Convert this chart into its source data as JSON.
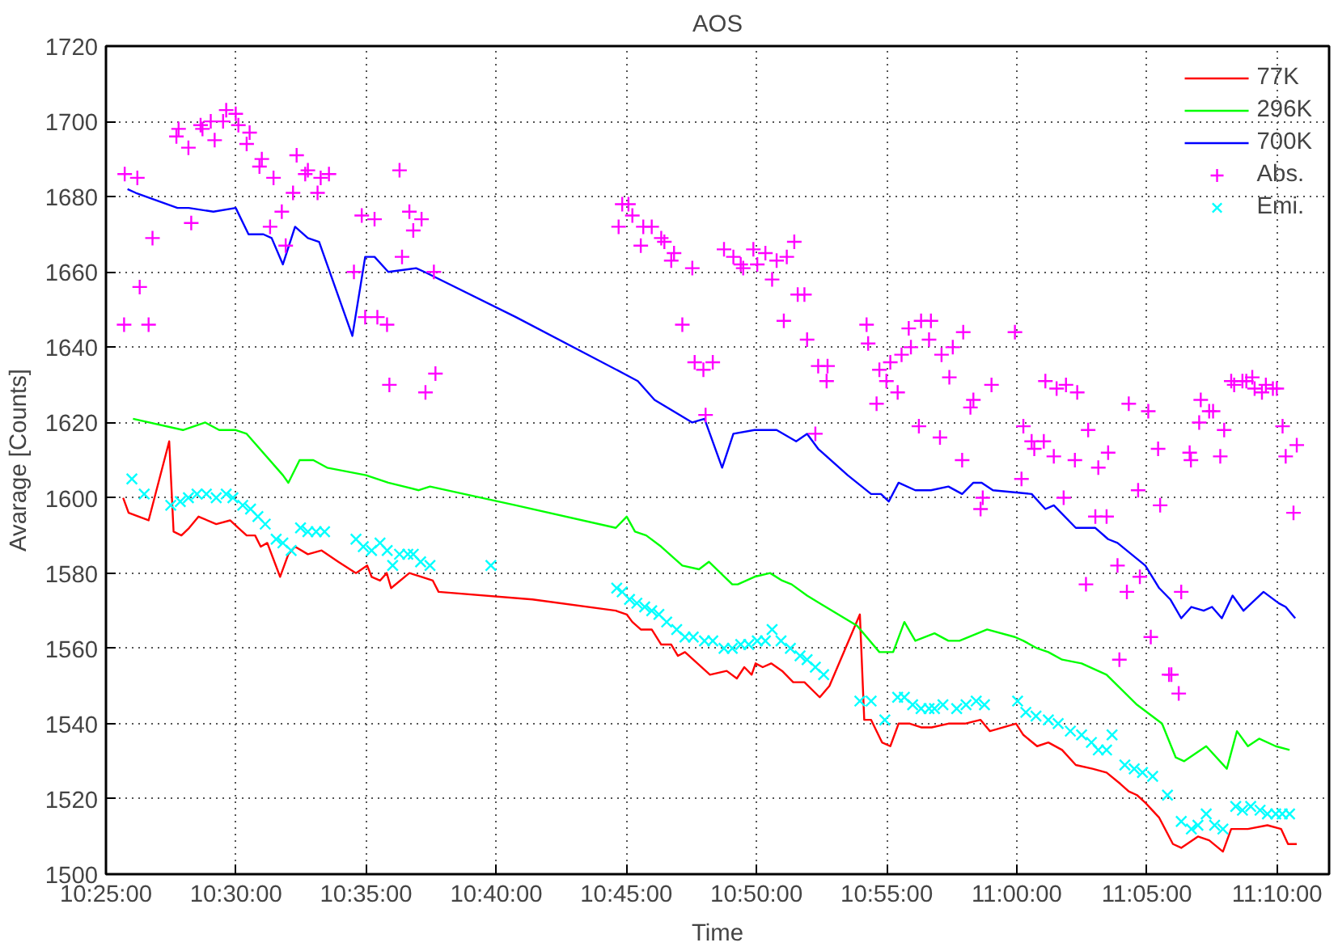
{
  "chart_data": {
    "type": "line",
    "title": "AOS",
    "xlabel": "Time",
    "ylabel": "Avarage [Counts]",
    "xlim": [
      10.4167,
      11.2
    ],
    "ylim": [
      1500,
      1720
    ],
    "xticks": [
      {
        "value": 10.4167,
        "label": "10:25:00"
      },
      {
        "value": 10.5,
        "label": "10:30:00"
      },
      {
        "value": 10.5833,
        "label": "10:35:00"
      },
      {
        "value": 10.6667,
        "label": "10:40:00"
      },
      {
        "value": 10.75,
        "label": "10:45:00"
      },
      {
        "value": 10.8333,
        "label": "10:50:00"
      },
      {
        "value": 10.9167,
        "label": "10:55:00"
      },
      {
        "value": 11.0,
        "label": "11:00:00"
      },
      {
        "value": 11.0833,
        "label": "11:05:00"
      },
      {
        "value": 11.1667,
        "label": "11:10:00"
      }
    ],
    "yticks": [
      1500,
      1520,
      1540,
      1560,
      1580,
      1600,
      1620,
      1640,
      1660,
      1680,
      1700,
      1720
    ],
    "grid": true,
    "legend": "top right",
    "line_style": "solid",
    "series": [
      {
        "name": "77K",
        "color": "#ff0000",
        "marker": "none",
        "x": [
          10.4277,
          10.4312,
          10.444,
          10.4572,
          10.46,
          10.465,
          10.47,
          10.476,
          10.4873,
          10.4962,
          10.5015,
          10.5068,
          10.5122,
          10.5158,
          10.52,
          10.5282,
          10.5335,
          10.5378,
          10.546,
          10.5548,
          10.5655,
          10.5768,
          10.584,
          10.5868,
          10.5922,
          10.5965,
          10.5993,
          10.611,
          10.6188,
          10.626,
          10.6297,
          10.6898,
          10.7432,
          10.7502,
          10.7538,
          10.7592,
          10.7662,
          10.7723,
          10.7787,
          10.783,
          10.7875,
          10.8035,
          10.8142,
          10.8207,
          10.8255,
          10.8302,
          10.8327,
          10.8373,
          10.8427,
          10.8497,
          10.8568,
          10.864,
          10.8738,
          10.88,
          10.8995,
          10.9023,
          10.9067,
          10.9137,
          10.919,
          10.9243,
          10.9315,
          10.9387,
          10.9455,
          10.9562,
          10.9668,
          10.9768,
          10.9828,
          10.9995,
          11.0042,
          11.013,
          11.0202,
          11.029,
          11.0378,
          11.0485,
          11.0575,
          11.0663,
          11.0717,
          11.077,
          11.0823,
          11.0912,
          11.1,
          11.1053,
          11.116,
          11.1232,
          11.132,
          11.1373,
          11.148,
          11.1605,
          11.1693,
          11.1737,
          11.1793
        ],
        "values": [
          1600,
          1596,
          1594,
          1615,
          1591,
          1590,
          1592,
          1595,
          1593,
          1594,
          1592,
          1590,
          1590,
          1587,
          1588,
          1579,
          1585,
          1587,
          1585,
          1586,
          1583,
          1580,
          1582,
          1579,
          1578,
          1580,
          1576,
          1580,
          1579,
          1578,
          1575,
          1573,
          1570,
          1569,
          1567,
          1565,
          1565,
          1561,
          1561,
          1558,
          1559,
          1553,
          1554,
          1552,
          1555,
          1553,
          1556,
          1555,
          1556,
          1554,
          1551,
          1551,
          1547,
          1550,
          1569,
          1541,
          1541,
          1535,
          1534,
          1540,
          1540,
          1539,
          1539,
          1540,
          1540,
          1541,
          1538,
          1540,
          1537,
          1534,
          1535,
          1533,
          1529,
          1528,
          1527,
          1524,
          1522,
          1521,
          1519,
          1515,
          1508,
          1507,
          1510,
          1509,
          1506,
          1512,
          1512,
          1513,
          1512,
          1508,
          1508
        ]
      },
      {
        "name": "296K",
        "color": "#00ff00",
        "marker": "none",
        "x": [
          10.434,
          10.466,
          10.4803,
          10.4892,
          10.4998,
          10.5068,
          10.53,
          10.5335,
          10.5407,
          10.5495,
          10.5583,
          10.5832,
          10.5975,
          10.617,
          10.6242,
          10.6792,
          10.7432,
          10.7502,
          10.7555,
          10.7627,
          10.7723,
          10.7858,
          10.7965,
          10.8028,
          10.8178,
          10.8213,
          10.832,
          10.842,
          10.8497,
          10.8558,
          10.8657,
          10.8977,
          10.912,
          10.9208,
          10.928,
          10.935,
          10.9473,
          10.9562,
          10.9633,
          10.981,
          10.9988,
          11.0042,
          11.013,
          11.0202,
          11.029,
          11.0415,
          11.0575,
          11.077,
          11.093,
          11.1018,
          11.1072,
          11.1213,
          11.1345,
          11.141,
          11.148,
          11.1552,
          11.1658,
          11.1747
        ],
        "values": [
          1621,
          1618,
          1620,
          1618,
          1618,
          1617,
          1606,
          1604,
          1610,
          1610,
          1608,
          1606,
          1604,
          1602,
          1603,
          1598,
          1592,
          1595,
          1591,
          1590,
          1587,
          1582,
          1581,
          1583,
          1577,
          1577,
          1579,
          1580,
          1578,
          1577,
          1574,
          1566,
          1559,
          1559,
          1567,
          1562,
          1564,
          1562,
          1562,
          1565,
          1563,
          1562,
          1560,
          1559,
          1557,
          1556,
          1553,
          1545,
          1540,
          1531,
          1530,
          1534,
          1528,
          1538,
          1534,
          1536,
          1534,
          1533
        ]
      },
      {
        "name": "700K",
        "color": "#0000ff",
        "marker": "none",
        "x": [
          10.4305,
          10.4358,
          10.4625,
          10.4697,
          10.4855,
          10.4998,
          10.508,
          10.5175,
          10.5228,
          10.53,
          10.5378,
          10.546,
          10.5532,
          10.5745,
          10.5827,
          10.5887,
          10.5975,
          10.6153,
          10.6207,
          10.6792,
          10.7483,
          10.7573,
          10.768,
          10.7922,
          10.8,
          10.8113,
          10.8185,
          10.832,
          10.8462,
          10.8587,
          10.8657,
          10.8728,
          10.8917,
          10.9067,
          10.913,
          10.918,
          10.9243,
          10.935,
          10.945,
          10.9562,
          10.965,
          10.9722,
          10.9775,
          10.9847,
          11.0095,
          11.0183,
          11.0237,
          11.0378,
          11.0503,
          11.0585,
          11.0645,
          11.0823,
          11.0912,
          11.0983,
          11.1053,
          11.1118,
          11.1197,
          11.125,
          11.1313,
          11.1382,
          11.1452,
          11.158,
          11.1677,
          11.1722,
          11.1783
        ],
        "values": [
          1682,
          1681,
          1677,
          1677,
          1676,
          1677,
          1670,
          1670,
          1669,
          1662,
          1672,
          1669,
          1668,
          1643,
          1664,
          1664,
          1660,
          1661,
          1660,
          1648,
          1633,
          1631,
          1626,
          1620,
          1621,
          1608,
          1617,
          1618,
          1618,
          1615,
          1617,
          1613,
          1606,
          1601,
          1601,
          1599,
          1604,
          1602,
          1602,
          1603,
          1601,
          1604,
          1604,
          1602,
          1601,
          1597,
          1598,
          1592,
          1592,
          1589,
          1588,
          1582,
          1576,
          1573,
          1568,
          1571,
          1570,
          1571,
          1568,
          1574,
          1570,
          1575,
          1572,
          1571,
          1568
        ]
      },
      {
        "name": "Abs.",
        "type": "scatter",
        "color": "#ff00ff",
        "marker": "cross",
        "x": [
          10.4287,
          10.4368,
          10.4465,
          10.4283,
          10.4383,
          10.444,
          10.4618,
          10.4632,
          10.4695,
          10.4713,
          10.4773,
          10.4785,
          10.4838,
          10.4863,
          10.4917,
          10.4937,
          10.4998,
          10.5015,
          10.5068,
          10.5087,
          10.515,
          10.5165,
          10.5218,
          10.524,
          10.5293,
          10.5318,
          10.5365,
          10.5388,
          10.5443,
          10.546,
          10.5522,
          10.5542,
          10.5595,
          10.5755,
          10.5805,
          10.5827,
          10.5887,
          10.5905,
          10.5967,
          10.5982,
          10.6047,
          10.6063,
          10.611,
          10.6135,
          10.6188,
          10.6213,
          10.6277,
          10.6267,
          10.745,
          10.7473,
          10.7513,
          10.7538,
          10.7592,
          10.7608,
          10.7662,
          10.7723,
          10.7743,
          10.7787,
          10.7805,
          10.7858,
          10.7922,
          10.7937,
          10.7993,
          10.8007,
          10.8053,
          10.8125,
          10.8185,
          10.8232,
          10.8248,
          10.8313,
          10.8338,
          10.839,
          10.8433,
          10.8462,
          10.8508,
          10.8527,
          10.8575,
          10.8597,
          10.864,
          10.8657,
          10.871,
          10.8728,
          10.8782,
          10.8788,
          10.9038,
          10.9048,
          10.9102,
          10.912,
          10.9165,
          10.919,
          10.9237,
          10.9262,
          10.9308,
          10.9322,
          10.9373,
          10.9387,
          10.9438,
          10.945,
          10.9508,
          10.9518,
          10.9568,
          10.959,
          10.965,
          10.9657,
          10.9703,
          10.9722,
          10.9768,
          10.9782,
          10.9838,
          10.9988,
          11.003,
          11.0042,
          11.0095,
          11.0112,
          11.0173,
          11.0183,
          11.0237,
          11.0255,
          11.03,
          11.0315,
          11.0372,
          11.0387,
          11.0443,
          11.0457,
          11.0503,
          11.0522,
          11.0575,
          11.0585,
          11.0645,
          11.0657,
          11.0705,
          11.0717,
          11.0777,
          11.0788,
          11.0842,
          11.0858,
          11.0905,
          11.0918,
          11.0975,
          11.099,
          11.1037,
          11.1053,
          11.1107,
          11.1115,
          11.1168,
          11.1178,
          11.1232,
          11.1257,
          11.1303,
          11.1328,
          11.1373,
          11.1392,
          11.1445,
          11.147,
          11.1508,
          11.1523,
          11.157,
          11.1595,
          11.164,
          11.1665,
          11.1702,
          11.1722,
          11.1772,
          11.1793
        ],
        "values": [
          1686,
          1685,
          1669,
          1646,
          1656,
          1646,
          1696,
          1698,
          1693,
          1673,
          1699,
          1698,
          1700,
          1695,
          1700,
          1703,
          1702,
          1699,
          1694,
          1697,
          1688,
          1690,
          1672,
          1685,
          1676,
          1667,
          1681,
          1691,
          1686,
          1687,
          1681,
          1685,
          1686,
          1660,
          1675,
          1648,
          1674,
          1648,
          1646,
          1630,
          1687,
          1664,
          1676,
          1671,
          1674,
          1628,
          1633,
          1660,
          1672,
          1678,
          1678,
          1675,
          1667,
          1672,
          1672,
          1669,
          1668,
          1663,
          1665,
          1646,
          1661,
          1636,
          1634,
          1622,
          1636,
          1666,
          1664,
          1662,
          1661,
          1666,
          1662,
          1665,
          1658,
          1663,
          1647,
          1664,
          1668,
          1654,
          1654,
          1642,
          1617,
          1635,
          1631,
          1635,
          1646,
          1641,
          1625,
          1634,
          1631,
          1636,
          1628,
          1638,
          1645,
          1640,
          1619,
          1647,
          1642,
          1647,
          1616,
          1638,
          1632,
          1640,
          1610,
          1644,
          1624,
          1626,
          1597,
          1600,
          1630,
          1644,
          1605,
          1619,
          1615,
          1613,
          1615,
          1631,
          1611,
          1629,
          1600,
          1630,
          1610,
          1628,
          1577,
          1618,
          1595,
          1608,
          1595,
          1612,
          1582,
          1557,
          1575,
          1625,
          1602,
          1579,
          1623,
          1563,
          1613,
          1598,
          1553,
          1553,
          1548,
          1575,
          1612,
          1610,
          1620,
          1626,
          1623,
          1623,
          1611,
          1618,
          1631,
          1630,
          1631,
          1631,
          1632,
          1629,
          1628,
          1630,
          1629,
          1629,
          1619,
          1611,
          1596,
          1614
        ]
      },
      {
        "name": "Emi.",
        "type": "scatter",
        "color": "#00ffff",
        "marker": "x",
        "x": [
          10.4333,
          10.4412,
          10.4582,
          10.4643,
          10.4695,
          10.475,
          10.481,
          10.4873,
          10.4937,
          10.498,
          10.5043,
          10.5093,
          10.514,
          10.5187,
          10.5257,
          10.53,
          10.5353,
          10.5413,
          10.546,
          10.5513,
          10.5567,
          10.5768,
          10.5815,
          10.5868,
          10.5922,
          10.5968,
          10.6003,
          10.6047,
          10.61,
          10.6135,
          10.6182,
          10.6242,
          10.6632,
          10.7438,
          10.7473,
          10.752,
          10.7567,
          10.7617,
          10.7662,
          10.7708,
          10.7758,
          10.7822,
          10.7875,
          10.7928,
          10.8,
          10.8053,
          10.8125,
          10.8178,
          10.8232,
          10.8283,
          10.8338,
          10.839,
          10.8433,
          10.849,
          10.855,
          10.8612,
          10.8657,
          10.871,
          10.8763,
          10.8995,
          10.9067,
          10.9155,
          10.9237,
          10.928,
          10.9333,
          10.9387,
          10.9438,
          10.9473,
          10.9527,
          10.9615,
          10.9675,
          10.974,
          10.9793,
          11.0005,
          11.0058,
          11.0123,
          11.0202,
          11.0265,
          11.0343,
          11.0415,
          11.0478,
          11.0522,
          11.0575,
          11.061,
          11.0692,
          11.0752,
          11.0805,
          11.087,
          11.0965,
          11.1053,
          11.1118,
          11.116,
          11.1213,
          11.1267,
          11.132,
          11.1402,
          11.1445,
          11.1498,
          11.1558,
          11.1605,
          11.1658,
          11.17,
          11.1747
        ],
        "values": [
          1605,
          1601,
          1598,
          1599,
          1600,
          1601,
          1601,
          1600,
          1601,
          1600,
          1598,
          1597,
          1595,
          1593,
          1589,
          1588,
          1586,
          1592,
          1591,
          1591,
          1591,
          1589,
          1587,
          1586,
          1588,
          1586,
          1582,
          1585,
          1585,
          1585,
          1583,
          1582,
          1582,
          1576,
          1575,
          1573,
          1572,
          1571,
          1570,
          1569,
          1567,
          1565,
          1563,
          1563,
          1562,
          1562,
          1560,
          1560,
          1561,
          1561,
          1562,
          1562,
          1565,
          1562,
          1560,
          1558,
          1557,
          1555,
          1553,
          1546,
          1546,
          1541,
          1547,
          1547,
          1545,
          1544,
          1544,
          1544,
          1545,
          1544,
          1545,
          1546,
          1545,
          1546,
          1543,
          1542,
          1541,
          1540,
          1538,
          1537,
          1535,
          1533,
          1533,
          1537,
          1529,
          1528,
          1527,
          1526,
          1521,
          1514,
          1512,
          1513,
          1516,
          1513,
          1512,
          1518,
          1517,
          1518,
          1517,
          1516,
          1516,
          1516,
          1516
        ]
      }
    ]
  }
}
